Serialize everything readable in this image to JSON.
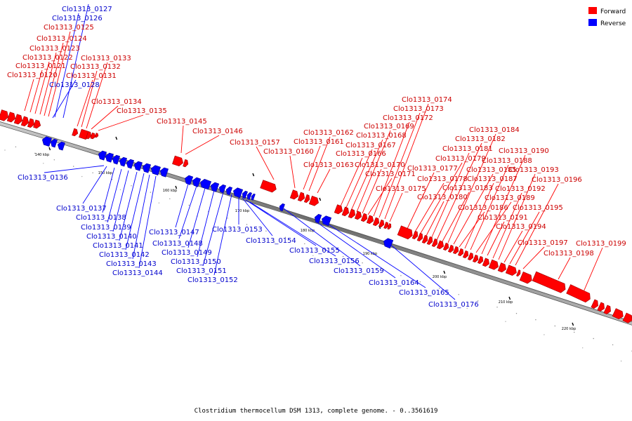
{
  "caption": "Clostridium thermocellum DSM 1313, complete genome. - 0..3561619",
  "legend": {
    "forward": {
      "label": "Forward",
      "color": "#ff0000"
    },
    "reverse": {
      "label": "Reverse",
      "color": "#0000ff"
    }
  },
  "colors": {
    "forward": "#ff0000",
    "reverse": "#0000ff",
    "forward_text": "#cc0000",
    "reverse_text": "#0000cc",
    "backbone": "#888888"
  },
  "ticks": [
    {
      "label": "140 kbp",
      "pos": 140
    },
    {
      "label": "150 kbp",
      "pos": 150
    },
    {
      "label": "160 kbp",
      "pos": 160
    },
    {
      "label": "170 kbp",
      "pos": 170
    },
    {
      "label": "180 kbp",
      "pos": 180
    },
    {
      "label": "190 kbp",
      "pos": 190
    },
    {
      "label": "200 kbp",
      "pos": 200
    },
    {
      "label": "210 kbp",
      "pos": 210
    },
    {
      "label": "220 kbp",
      "pos": 220
    }
  ],
  "genes": [
    {
      "label": "Clo1313_0120",
      "strand": "forward"
    },
    {
      "label": "Clo1313_0121",
      "strand": "forward"
    },
    {
      "label": "Clo1313_0122",
      "strand": "forward"
    },
    {
      "label": "Clo1313_0123",
      "strand": "forward"
    },
    {
      "label": "Clo1313_0124",
      "strand": "forward"
    },
    {
      "label": "Clo1313_0125",
      "strand": "forward"
    },
    {
      "label": "Clo1313_0126",
      "strand": "reverse"
    },
    {
      "label": "Clo1313_0127",
      "strand": "reverse"
    },
    {
      "label": "Clo1313_0128",
      "strand": "reverse"
    },
    {
      "label": "Clo1313_0131",
      "strand": "forward"
    },
    {
      "label": "Clo1313_0132",
      "strand": "forward"
    },
    {
      "label": "Clo1313_0133",
      "strand": "forward"
    },
    {
      "label": "Clo1313_0134",
      "strand": "forward"
    },
    {
      "label": "Clo1313_0135",
      "strand": "forward"
    },
    {
      "label": "Clo1313_0136",
      "strand": "reverse"
    },
    {
      "label": "Clo1313_0137",
      "strand": "reverse"
    },
    {
      "label": "Clo1313_0138",
      "strand": "reverse"
    },
    {
      "label": "Clo1313_0139",
      "strand": "reverse"
    },
    {
      "label": "Clo1313_0140",
      "strand": "reverse"
    },
    {
      "label": "Clo1313_0141",
      "strand": "reverse"
    },
    {
      "label": "Clo1313_0142",
      "strand": "reverse"
    },
    {
      "label": "Clo1313_0143",
      "strand": "reverse"
    },
    {
      "label": "Clo1313_0144",
      "strand": "reverse"
    },
    {
      "label": "Clo1313_0145",
      "strand": "forward"
    },
    {
      "label": "Clo1313_0146",
      "strand": "forward"
    },
    {
      "label": "Clo1313_0147",
      "strand": "reverse"
    },
    {
      "label": "Clo1313_0148",
      "strand": "reverse"
    },
    {
      "label": "Clo1313_0149",
      "strand": "reverse"
    },
    {
      "label": "Clo1313_0150",
      "strand": "reverse"
    },
    {
      "label": "Clo1313_0151",
      "strand": "reverse"
    },
    {
      "label": "Clo1313_0152",
      "strand": "reverse"
    },
    {
      "label": "Clo1313_0153",
      "strand": "reverse"
    },
    {
      "label": "Clo1313_0154",
      "strand": "reverse"
    },
    {
      "label": "Clo1313_0155",
      "strand": "reverse"
    },
    {
      "label": "Clo1313_0156",
      "strand": "reverse"
    },
    {
      "label": "Clo1313_0157",
      "strand": "forward"
    },
    {
      "label": "Clo1313_0159",
      "strand": "reverse"
    },
    {
      "label": "Clo1313_0160",
      "strand": "forward"
    },
    {
      "label": "Clo1313_0161",
      "strand": "forward"
    },
    {
      "label": "Clo1313_0162",
      "strand": "forward"
    },
    {
      "label": "Clo1313_0163",
      "strand": "forward"
    },
    {
      "label": "Clo1313_0164",
      "strand": "reverse"
    },
    {
      "label": "Clo1313_0165",
      "strand": "reverse"
    },
    {
      "label": "Clo1313_0166",
      "strand": "forward"
    },
    {
      "label": "Clo1313_0167",
      "strand": "forward"
    },
    {
      "label": "Clo1313_0168",
      "strand": "forward"
    },
    {
      "label": "Clo1313_0169",
      "strand": "forward"
    },
    {
      "label": "Clo1313_0170",
      "strand": "forward"
    },
    {
      "label": "Clo1313_0171",
      "strand": "forward"
    },
    {
      "label": "Clo1313_0172",
      "strand": "forward"
    },
    {
      "label": "Clo1313_0173",
      "strand": "forward"
    },
    {
      "label": "Clo1313_0174",
      "strand": "forward"
    },
    {
      "label": "Clo1313_0175",
      "strand": "forward"
    },
    {
      "label": "Clo1313_0176",
      "strand": "reverse"
    },
    {
      "label": "Clo1313_0177",
      "strand": "forward"
    },
    {
      "label": "Clo1313_0178",
      "strand": "forward"
    },
    {
      "label": "Clo1313_0179",
      "strand": "forward"
    },
    {
      "label": "Clo1313_0180",
      "strand": "forward"
    },
    {
      "label": "Clo1313_0181",
      "strand": "forward"
    },
    {
      "label": "Clo1313_0182",
      "strand": "forward"
    },
    {
      "label": "Clo1313_0183",
      "strand": "forward"
    },
    {
      "label": "Clo1313_0184",
      "strand": "forward"
    },
    {
      "label": "Clo1313_0185",
      "strand": "forward"
    },
    {
      "label": "Clo1313_0186",
      "strand": "forward"
    },
    {
      "label": "Clo1313_0187",
      "strand": "forward"
    },
    {
      "label": "Clo1313_0188",
      "strand": "forward"
    },
    {
      "label": "Clo1313_0189",
      "strand": "forward"
    },
    {
      "label": "Clo1313_0190",
      "strand": "forward"
    },
    {
      "label": "Clo1313_0191",
      "strand": "forward"
    },
    {
      "label": "Clo1313_0192",
      "strand": "forward"
    },
    {
      "label": "Clo1313_0193",
      "strand": "forward"
    },
    {
      "label": "Clo1313_0194",
      "strand": "forward"
    },
    {
      "label": "Clo1313_0195",
      "strand": "forward"
    },
    {
      "label": "Clo1313_0196",
      "strand": "forward"
    },
    {
      "label": "Clo1313_0197",
      "strand": "forward"
    },
    {
      "label": "Clo1313_0198",
      "strand": "forward"
    },
    {
      "label": "Clo1313_0199",
      "strand": "forward"
    }
  ]
}
